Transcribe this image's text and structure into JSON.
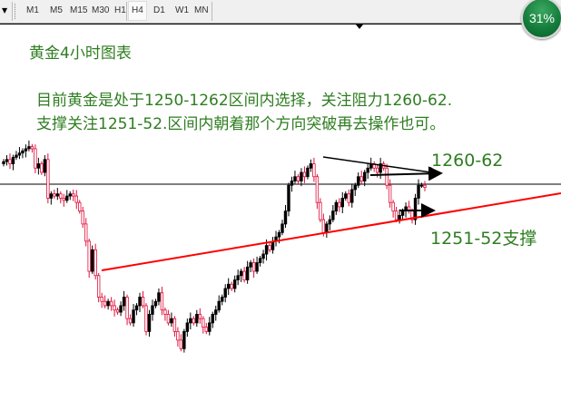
{
  "toolbar": {
    "timeframes": [
      "M1",
      "M5",
      "M15",
      "M30",
      "H1",
      "H4",
      "D1",
      "W1",
      "MN"
    ],
    "active_timeframe": "H4",
    "progress_badge": "31%"
  },
  "annotations": {
    "title": "黄金4小时图表",
    "line1": "目前黄金是处于1250-1262区间内选择，关注阻力1260-62.",
    "line2": "支撑关注1251-52.区间内朝着那个方向突破再去操作也可。",
    "resistance_label": "1260-62",
    "support_label": "1251-52支撑"
  },
  "colors": {
    "text": "#2e7d20",
    "bull_candle": "#000000",
    "bear_candle": "#e0103a",
    "trendline": "#ff0000",
    "badge": "#137a3a"
  },
  "chart_data": {
    "type": "candlestick",
    "timeframe": "H4",
    "closes": [
      1263.5,
      1264,
      1263,
      1264.5,
      1265,
      1265.5,
      1266,
      1266.5,
      1267,
      1266.5,
      1262,
      1263,
      1261,
      1264,
      1255,
      1256,
      1255.5,
      1256,
      1255,
      1254.5,
      1255.5,
      1256,
      1255.5,
      1254,
      1252,
      1249,
      1245,
      1238,
      1243,
      1237,
      1232,
      1231,
      1230,
      1231,
      1230,
      1229,
      1228.5,
      1230,
      1232,
      1227,
      1226,
      1229,
      1230,
      1232,
      1230,
      1224,
      1228,
      1230,
      1231,
      1233,
      1229,
      1228,
      1226,
      1227,
      1224,
      1222,
      1220,
      1224,
      1226,
      1227,
      1226,
      1228,
      1227,
      1225,
      1224,
      1226,
      1228,
      1229,
      1231,
      1232,
      1234,
      1235,
      1234,
      1236,
      1237,
      1238,
      1236,
      1239,
      1240,
      1238,
      1240,
      1241,
      1242,
      1244,
      1243,
      1245,
      1246,
      1247,
      1249,
      1252,
      1258,
      1259,
      1260,
      1259,
      1261,
      1260,
      1262,
      1263,
      1260,
      1254,
      1250,
      1247,
      1249,
      1250,
      1252,
      1254,
      1253,
      1255,
      1256,
      1254,
      1257,
      1258,
      1260,
      1259,
      1261,
      1262,
      1263,
      1262,
      1261,
      1263,
      1262,
      1258,
      1254,
      1252,
      1250,
      1251,
      1252,
      1253,
      1252,
      1250,
      1255,
      1258,
      1258,
      1257.5
    ],
    "resistance_zone": [
      1260,
      1262
    ],
    "support_zone": [
      1251,
      1252
    ]
  }
}
